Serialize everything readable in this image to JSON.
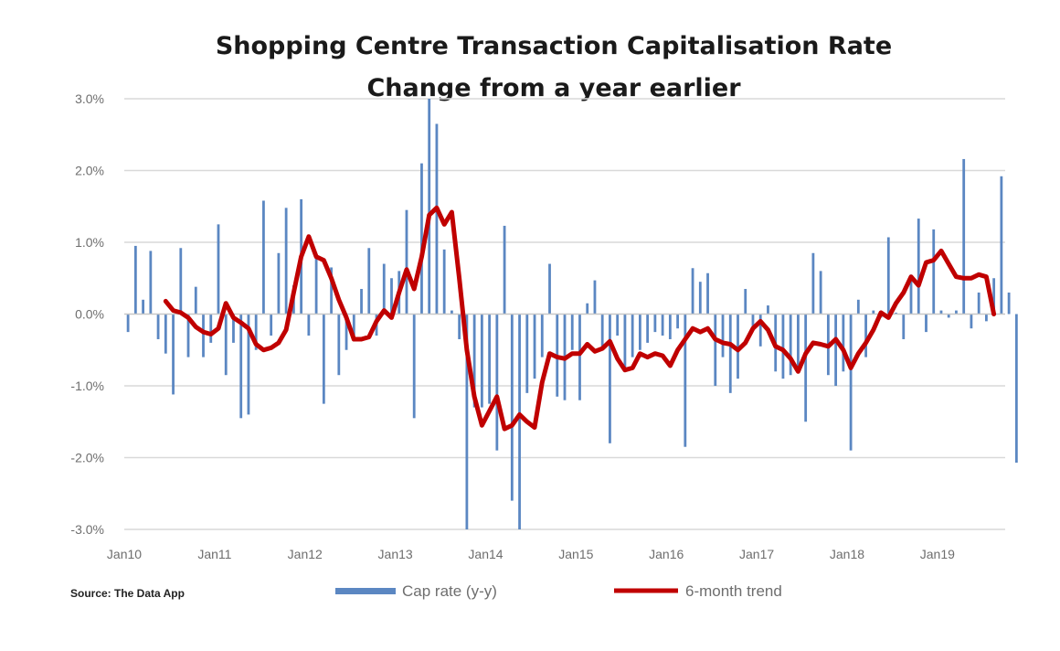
{
  "chart_data": {
    "type": "bar+line",
    "title": "Shopping Centre Transaction Capitalisation Rate",
    "subtitle": "Change from a year earlier",
    "source": "Source: The Data App",
    "ylim": [
      -3.0,
      3.0
    ],
    "y_ticks": [
      "3.0%",
      "2.0%",
      "1.0%",
      "0.0%",
      "-1.0%",
      "-2.0%",
      "-3.0%"
    ],
    "y_tick_values": [
      3,
      2,
      1,
      0,
      -1,
      -2,
      -3
    ],
    "x_ticks": [
      "Jan10",
      "Jan11",
      "Jan12",
      "Jan13",
      "Jan14",
      "Jan15",
      "Jan16",
      "Jan17",
      "Jan18",
      "Jan19"
    ],
    "x_start": "Jan10",
    "x_end": "Sep19",
    "grid": true,
    "legend": "bottom",
    "colors": {
      "bars": "#5b87c2",
      "trend": "#c00000",
      "grid": "#d9d9d9",
      "axis": "#c8c8c8"
    },
    "series": [
      {
        "name": "Cap rate (y-y)",
        "type": "bar",
        "values": [
          -0.25,
          0.95,
          0.2,
          0.88,
          -0.35,
          -0.55,
          -1.12,
          0.92,
          -0.6,
          0.38,
          -0.6,
          -0.4,
          1.25,
          -0.85,
          -0.4,
          -1.45,
          -1.4,
          -0.5,
          1.58,
          -0.3,
          0.85,
          1.48,
          0.4,
          1.6,
          -0.3,
          0.8,
          -1.25,
          0.65,
          -0.85,
          -0.5,
          -0.3,
          0.35,
          0.92,
          -0.3,
          0.7,
          0.5,
          0.6,
          1.45,
          -1.45,
          2.1,
          3.0,
          2.65,
          0.9,
          0.05,
          -0.35,
          -3.0,
          -1.3,
          -1.3,
          -1.25,
          -1.9,
          1.23,
          -2.6,
          -3.0,
          -1.1,
          -0.9,
          -0.6,
          0.7,
          -1.15,
          -1.2,
          -0.5,
          -1.2,
          0.15,
          0.47,
          -0.5,
          -1.8,
          -0.3,
          -0.8,
          -0.6,
          -0.5,
          -0.4,
          -0.25,
          -0.3,
          -0.35,
          -0.2,
          -1.85,
          0.64,
          0.45,
          0.57,
          -1.0,
          -0.6,
          -1.1,
          -0.9,
          0.35,
          -0.2,
          -0.45,
          0.12,
          -0.8,
          -0.9,
          -0.85,
          -0.75,
          -1.5,
          0.85,
          0.6,
          -0.85,
          -1.0,
          -0.8,
          -1.9,
          0.2,
          -0.6,
          0.05,
          -0.05,
          1.07,
          0.02,
          -0.35,
          0.55,
          1.33,
          -0.25,
          1.18,
          0.05,
          -0.05,
          0.05,
          2.16,
          -0.2,
          0.3,
          -0.1,
          0.5,
          1.92,
          0.3,
          -2.07
        ]
      },
      {
        "name": "6-month trend",
        "type": "line",
        "points": [
          [
            "Jun10",
            0.18
          ],
          [
            "Jul10",
            0.05
          ],
          [
            "Aug10",
            0.02
          ],
          [
            "Sep10",
            -0.05
          ],
          [
            "Oct10",
            -0.18
          ],
          [
            "Nov10",
            -0.25
          ],
          [
            "Dec10",
            -0.28
          ],
          [
            "Jan11",
            -0.2
          ],
          [
            "Feb11",
            0.15
          ],
          [
            "Mar11",
            -0.05
          ],
          [
            "Apr11",
            -0.12
          ],
          [
            "May11",
            -0.2
          ],
          [
            "Jun11",
            -0.42
          ],
          [
            "Jul11",
            -0.5
          ],
          [
            "Aug11",
            -0.47
          ],
          [
            "Sep11",
            -0.4
          ],
          [
            "Oct11",
            -0.22
          ],
          [
            "Nov11",
            0.3
          ],
          [
            "Dec11",
            0.8
          ],
          [
            "Jan12",
            1.08
          ],
          [
            "Feb12",
            0.8
          ],
          [
            "Mar12",
            0.75
          ],
          [
            "Apr12",
            0.5
          ],
          [
            "May12",
            0.2
          ],
          [
            "Jun12",
            -0.05
          ],
          [
            "Jul12",
            -0.35
          ],
          [
            "Aug12",
            -0.35
          ],
          [
            "Sep12",
            -0.32
          ],
          [
            "Oct12",
            -0.1
          ],
          [
            "Nov12",
            0.05
          ],
          [
            "Dec12",
            -0.05
          ],
          [
            "Jan13",
            0.3
          ],
          [
            "Feb13",
            0.62
          ],
          [
            "Mar13",
            0.35
          ],
          [
            "Apr13",
            0.8
          ],
          [
            "May13",
            1.38
          ],
          [
            "Jun13",
            1.48
          ],
          [
            "Jul13",
            1.25
          ],
          [
            "Aug13",
            1.42
          ],
          [
            "Sep13",
            0.5
          ],
          [
            "Oct13",
            -0.5
          ],
          [
            "Nov13",
            -1.15
          ],
          [
            "Dec13",
            -1.55
          ],
          [
            "Jan14",
            -1.35
          ],
          [
            "Feb14",
            -1.15
          ],
          [
            "Mar14",
            -1.6
          ],
          [
            "Apr14",
            -1.55
          ],
          [
            "May14",
            -1.4
          ],
          [
            "Jun14",
            -1.5
          ],
          [
            "Jul14",
            -1.58
          ],
          [
            "Aug14",
            -0.95
          ],
          [
            "Sep14",
            -0.55
          ],
          [
            "Oct14",
            -0.6
          ],
          [
            "Nov14",
            -0.62
          ],
          [
            "Dec14",
            -0.55
          ],
          [
            "Jan15",
            -0.55
          ],
          [
            "Feb15",
            -0.42
          ],
          [
            "Mar15",
            -0.52
          ],
          [
            "Apr15",
            -0.48
          ],
          [
            "May15",
            -0.38
          ],
          [
            "Jun15",
            -0.62
          ],
          [
            "Jul15",
            -0.78
          ],
          [
            "Aug15",
            -0.75
          ],
          [
            "Sep15",
            -0.55
          ],
          [
            "Oct15",
            -0.6
          ],
          [
            "Nov15",
            -0.55
          ],
          [
            "Dec15",
            -0.58
          ],
          [
            "Jan16",
            -0.72
          ],
          [
            "Feb16",
            -0.5
          ],
          [
            "Mar16",
            -0.35
          ],
          [
            "Apr16",
            -0.2
          ],
          [
            "May16",
            -0.25
          ],
          [
            "Jun16",
            -0.2
          ],
          [
            "Jul16",
            -0.35
          ],
          [
            "Aug16",
            -0.4
          ],
          [
            "Sep16",
            -0.42
          ],
          [
            "Oct16",
            -0.5
          ],
          [
            "Nov16",
            -0.4
          ],
          [
            "Dec16",
            -0.2
          ],
          [
            "Jan17",
            -0.1
          ],
          [
            "Feb17",
            -0.22
          ],
          [
            "Mar17",
            -0.45
          ],
          [
            "Apr17",
            -0.5
          ],
          [
            "May17",
            -0.62
          ],
          [
            "Jun17",
            -0.8
          ],
          [
            "Jul17",
            -0.55
          ],
          [
            "Aug17",
            -0.4
          ],
          [
            "Sep17",
            -0.42
          ],
          [
            "Oct17",
            -0.45
          ],
          [
            "Nov17",
            -0.35
          ],
          [
            "Dec17",
            -0.5
          ],
          [
            "Jan18",
            -0.75
          ],
          [
            "Feb18",
            -0.55
          ],
          [
            "Mar18",
            -0.4
          ],
          [
            "Apr18",
            -0.22
          ],
          [
            "May18",
            0.02
          ],
          [
            "Jun18",
            -0.05
          ],
          [
            "Jul18",
            0.15
          ],
          [
            "Aug18",
            0.3
          ],
          [
            "Sep18",
            0.52
          ],
          [
            "Oct18",
            0.4
          ],
          [
            "Nov18",
            0.72
          ],
          [
            "Dec18",
            0.75
          ],
          [
            "Jan19",
            0.88
          ],
          [
            "Feb19",
            0.7
          ],
          [
            "Mar19",
            0.52
          ],
          [
            "Apr19",
            0.5
          ],
          [
            "May19",
            0.5
          ],
          [
            "Jun19",
            0.55
          ],
          [
            "Jul19",
            0.52
          ],
          [
            "Aug19",
            0.0
          ]
        ]
      }
    ]
  }
}
